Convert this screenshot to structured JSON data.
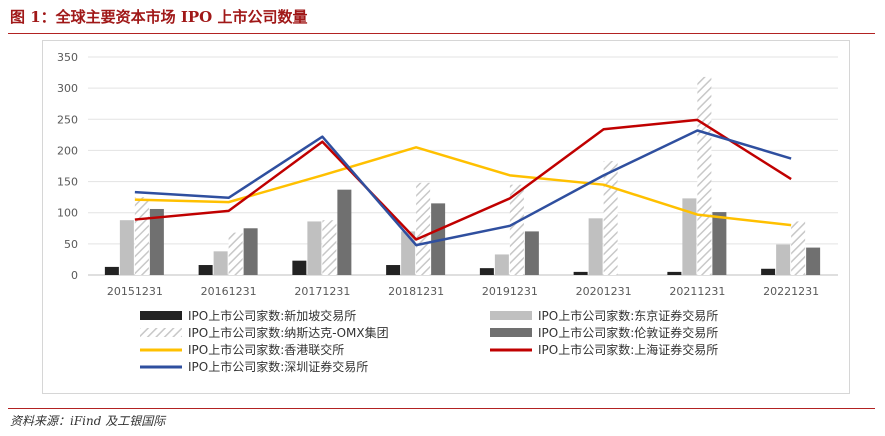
{
  "header": {
    "title": "图 1：全球主要资本市场 IPO 上市公司数量"
  },
  "footer": {
    "source": "资料来源：iFind 及工银国际"
  },
  "colors": {
    "sgx": "#222222",
    "tse": "#c0c0c0",
    "nasdaq_omx": "#c8c8c8",
    "lse": "#707070",
    "hkex": "#ffc000",
    "sse": "#c00000",
    "szse": "#2f4f9f"
  },
  "chart_data": {
    "type": "bar",
    "categories": [
      "20151231",
      "20161231",
      "20171231",
      "20181231",
      "20191231",
      "20201231",
      "20211231",
      "20221231"
    ],
    "ylim": [
      0,
      350
    ],
    "yticks": [
      0,
      50,
      100,
      150,
      200,
      250,
      300,
      350
    ],
    "grid": true,
    "legend_position": "bottom",
    "series": [
      {
        "name": "IPO上市公司家数:新加坡交易所",
        "kind": "bar",
        "pattern": "solid-black",
        "values": [
          13,
          16,
          23,
          16,
          11,
          5,
          5,
          10
        ]
      },
      {
        "name": "IPO上市公司家数:东京证券交易所",
        "kind": "bar",
        "pattern": "solid-lightgray",
        "values": [
          88,
          38,
          86,
          70,
          33,
          91,
          123,
          49
        ]
      },
      {
        "name": "IPO上市公司家数:纳斯达克-OMX集团",
        "kind": "bar",
        "pattern": "hatched",
        "values": [
          125,
          68,
          88,
          148,
          145,
          183,
          318,
          86
        ]
      },
      {
        "name": "IPO上市公司家数:伦敦证券交易所",
        "kind": "bar",
        "pattern": "solid-darkgray",
        "values": [
          106,
          75,
          137,
          115,
          70,
          0,
          101,
          44
        ]
      },
      {
        "name": "IPO上市公司家数:香港联交所",
        "kind": "line",
        "values": [
          121,
          117,
          160,
          205,
          160,
          145,
          97,
          80
        ]
      },
      {
        "name": "IPO上市公司家数:上海证券交易所",
        "kind": "line",
        "values": [
          89,
          103,
          214,
          57,
          123,
          234,
          249,
          154
        ]
      },
      {
        "name": "IPO上市公司家数:深圳证券交易所",
        "kind": "line",
        "values": [
          133,
          124,
          222,
          48,
          79,
          160,
          232,
          187
        ]
      }
    ]
  }
}
